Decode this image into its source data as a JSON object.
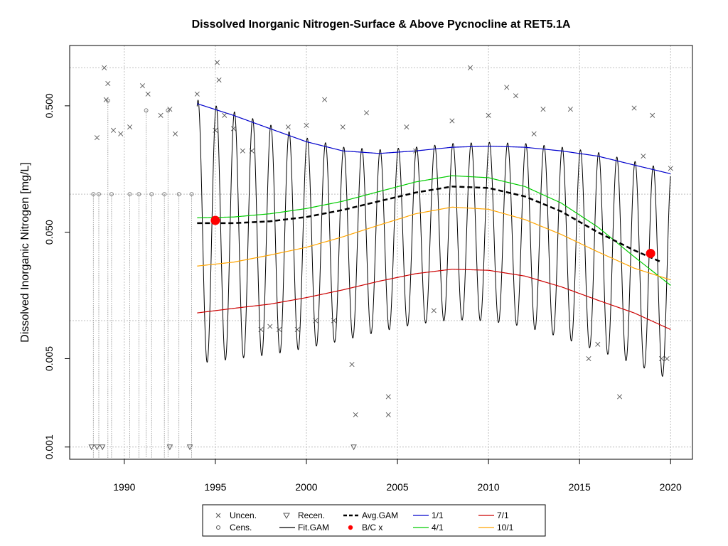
{
  "chart_data": {
    "type": "scatter",
    "title": "Dissolved Inorganic Nitrogen-Surface & Above Pycnocline at RET5.1A",
    "ylabel": "Dissolved Inorganic Nitrogen [mg/L]",
    "xlabel": "",
    "xlim": [
      1987.0,
      2021.2
    ],
    "ylim": [
      0.0008,
      1.5
    ],
    "y_scale": "log",
    "x_ticks": [
      1990,
      1995,
      2000,
      2005,
      2010,
      2015,
      2020
    ],
    "y_ticks": [
      0.001,
      0.005,
      0.05,
      0.5
    ],
    "y_tick_labels": [
      "0.001",
      "0.005",
      "0.050",
      "0.500"
    ],
    "y_grid": [
      0.001,
      0.01,
      0.1,
      1.0
    ],
    "grid": true,
    "legend_placement": "bottom-center",
    "legend": [
      {
        "label": "Uncen.",
        "marker": "x",
        "color": "#555555"
      },
      {
        "label": "Cens.",
        "marker": "circle",
        "color": "#555555"
      },
      {
        "label": "Recen.",
        "marker": "triangle-down",
        "color": "#555555"
      },
      {
        "label": "Fit.GAM",
        "marker": "line",
        "color": "#000000"
      },
      {
        "label": "Avg.GAM",
        "marker": "dashed-line",
        "color": "#000000"
      },
      {
        "label": "B/C x",
        "marker": "dot",
        "color": "#ff0000"
      },
      {
        "label": "1/1",
        "marker": "line",
        "color": "#0000cc"
      },
      {
        "label": "4/1",
        "marker": "line",
        "color": "#00cc00"
      },
      {
        "label": "7/1",
        "marker": "line",
        "color": "#cc0000"
      },
      {
        "label": "10/1",
        "marker": "line",
        "color": "#ffa500"
      }
    ],
    "series": [
      {
        "name": "1/1",
        "color": "#0000cc",
        "x": [
          1994.0,
          1996,
          1998,
          2000,
          2002,
          2004,
          2006,
          2008,
          2010,
          2012,
          2014,
          2016,
          2018,
          2020.0
        ],
        "y": [
          0.52,
          0.42,
          0.33,
          0.26,
          0.22,
          0.21,
          0.22,
          0.235,
          0.24,
          0.235,
          0.22,
          0.2,
          0.17,
          0.145
        ]
      },
      {
        "name": "4/1",
        "color": "#00cc00",
        "x": [
          1994.0,
          1996,
          1998,
          2000,
          2002,
          2004,
          2006,
          2008,
          2010,
          2012,
          2014,
          2016,
          2018,
          2020.0
        ],
        "y": [
          0.065,
          0.066,
          0.07,
          0.077,
          0.088,
          0.105,
          0.125,
          0.14,
          0.135,
          0.115,
          0.085,
          0.055,
          0.032,
          0.019
        ]
      },
      {
        "name": "7/1",
        "color": "#cc0000",
        "x": [
          1994.0,
          1996,
          1998,
          2000,
          2002,
          2004,
          2006,
          2008,
          2010,
          2012,
          2014,
          2016,
          2018,
          2020.0
        ],
        "y": [
          0.0115,
          0.0125,
          0.0135,
          0.0152,
          0.0175,
          0.0205,
          0.0235,
          0.0255,
          0.025,
          0.0225,
          0.0185,
          0.0145,
          0.0115,
          0.0085
        ]
      },
      {
        "name": "10/1",
        "color": "#ffa500",
        "x": [
          1994.0,
          1996,
          1998,
          2000,
          2002,
          2004,
          2006,
          2008,
          2010,
          2012,
          2014,
          2016,
          2018,
          2020.0
        ],
        "y": [
          0.027,
          0.029,
          0.033,
          0.038,
          0.046,
          0.057,
          0.07,
          0.079,
          0.076,
          0.063,
          0.048,
          0.035,
          0.026,
          0.021
        ]
      },
      {
        "name": "Avg.GAM",
        "color": "#000000",
        "x": [
          1994.0,
          1996,
          1998,
          2000,
          2002,
          2004,
          2006,
          2008,
          2010,
          2012,
          2014,
          2016,
          2018,
          2019.5
        ],
        "y": [
          0.059,
          0.059,
          0.061,
          0.066,
          0.075,
          0.088,
          0.103,
          0.115,
          0.112,
          0.096,
          0.073,
          0.05,
          0.036,
          0.029
        ]
      }
    ],
    "fit_gam": {
      "x_start": 1994.0,
      "x_end": 2020.0,
      "peak_month_fraction": 0.05
    },
    "bc_points": [
      {
        "x": 1995.0,
        "y": 0.062
      },
      {
        "x": 2018.9,
        "y": 0.034
      }
    ],
    "uncensored_points": [
      {
        "x": 1988.5,
        "y": 0.28
      },
      {
        "x": 1988.9,
        "y": 1.0
      },
      {
        "x": 1989.1,
        "y": 0.75
      },
      {
        "x": 1989.0,
        "y": 0.56
      },
      {
        "x": 1989.4,
        "y": 0.32
      },
      {
        "x": 1989.8,
        "y": 0.3
      },
      {
        "x": 1990.3,
        "y": 0.34
      },
      {
        "x": 1991.0,
        "y": 0.72
      },
      {
        "x": 1991.3,
        "y": 0.62
      },
      {
        "x": 1992.0,
        "y": 0.42
      },
      {
        "x": 1992.5,
        "y": 0.47
      },
      {
        "x": 1992.8,
        "y": 0.3
      },
      {
        "x": 1994.0,
        "y": 0.62
      },
      {
        "x": 1995.0,
        "y": 0.32
      },
      {
        "x": 1995.1,
        "y": 1.1
      },
      {
        "x": 1995.2,
        "y": 0.8
      },
      {
        "x": 1995.5,
        "y": 0.42
      },
      {
        "x": 1996.0,
        "y": 0.33
      },
      {
        "x": 1996.5,
        "y": 0.22
      },
      {
        "x": 1997.0,
        "y": 0.22
      },
      {
        "x": 1997.5,
        "y": 0.0085
      },
      {
        "x": 1998.0,
        "y": 0.009
      },
      {
        "x": 1998.5,
        "y": 0.0085
      },
      {
        "x": 1999.0,
        "y": 0.34
      },
      {
        "x": 1999.5,
        "y": 0.0085
      },
      {
        "x": 2000.0,
        "y": 0.35
      },
      {
        "x": 2000.5,
        "y": 0.01
      },
      {
        "x": 2001.0,
        "y": 0.56
      },
      {
        "x": 2001.5,
        "y": 0.01
      },
      {
        "x": 2002.0,
        "y": 0.34
      },
      {
        "x": 2002.5,
        "y": 0.0045
      },
      {
        "x": 2002.7,
        "y": 0.0018
      },
      {
        "x": 2003.3,
        "y": 0.44
      },
      {
        "x": 2004.5,
        "y": 0.0025
      },
      {
        "x": 2004.5,
        "y": 0.0018
      },
      {
        "x": 2005.5,
        "y": 0.34
      },
      {
        "x": 2006.0,
        "y": 0.22
      },
      {
        "x": 2007.0,
        "y": 0.012
      },
      {
        "x": 2008.0,
        "y": 0.38
      },
      {
        "x": 2009.0,
        "y": 1.0
      },
      {
        "x": 2010.0,
        "y": 0.42
      },
      {
        "x": 2011.0,
        "y": 0.7
      },
      {
        "x": 2011.5,
        "y": 0.6
      },
      {
        "x": 2012.5,
        "y": 0.3
      },
      {
        "x": 2013.0,
        "y": 0.47
      },
      {
        "x": 2014.5,
        "y": 0.47
      },
      {
        "x": 2015.5,
        "y": 0.005
      },
      {
        "x": 2016.0,
        "y": 0.0065
      },
      {
        "x": 2017.2,
        "y": 0.0025
      },
      {
        "x": 2018.0,
        "y": 0.48
      },
      {
        "x": 2018.5,
        "y": 0.2
      },
      {
        "x": 2019.0,
        "y": 0.42
      },
      {
        "x": 2019.5,
        "y": 0.005
      },
      {
        "x": 2019.8,
        "y": 0.005
      },
      {
        "x": 2020.0,
        "y": 0.16
      }
    ],
    "censored_points": [
      {
        "x": 1988.3,
        "y": 0.1
      },
      {
        "x": 1988.6,
        "y": 0.1
      },
      {
        "x": 1989.3,
        "y": 0.1
      },
      {
        "x": 1990.3,
        "y": 0.1
      },
      {
        "x": 1990.8,
        "y": 0.1
      },
      {
        "x": 1991.5,
        "y": 0.1
      },
      {
        "x": 1992.2,
        "y": 0.1
      },
      {
        "x": 1993.0,
        "y": 0.1
      },
      {
        "x": 1993.7,
        "y": 0.1
      },
      {
        "x": 1989.1,
        "y": 0.55
      },
      {
        "x": 1991.2,
        "y": 0.46
      },
      {
        "x": 1992.4,
        "y": 0.46
      }
    ],
    "recensored_points": [
      {
        "x": 1988.2,
        "y": 0.001
      },
      {
        "x": 1988.5,
        "y": 0.001
      },
      {
        "x": 1988.8,
        "y": 0.001
      },
      {
        "x": 1992.5,
        "y": 0.001
      },
      {
        "x": 1993.6,
        "y": 0.001
      },
      {
        "x": 2002.6,
        "y": 0.001
      }
    ]
  }
}
